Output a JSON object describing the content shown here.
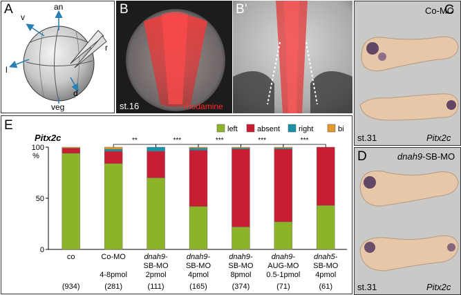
{
  "panel_a": {
    "label": "A",
    "axis_an": "an",
    "axis_v": "v",
    "axis_l": "l",
    "axis_r": "r",
    "axis_d": "d",
    "axis_veg": "veg"
  },
  "panel_b": {
    "label": "B",
    "stage": "st.16",
    "stain": "rhodamine"
  },
  "panel_bp": {
    "label": "B’"
  },
  "panel_c": {
    "label": "C",
    "condition": "Co-MO",
    "stage": "st.31",
    "gene": "Pitx2c"
  },
  "panel_d": {
    "label": "D",
    "condition_prefix": "dnah9",
    "condition_suffix": "-SB-MO",
    "stage": "st.31",
    "gene": "Pitx2c"
  },
  "panel_e": {
    "label": "E"
  },
  "colors": {
    "left": "#8db32a",
    "absent": "#c91d34",
    "right": "#1a93a6",
    "bi": "#e09a2c"
  },
  "chart_data": {
    "type": "bar",
    "stacked": true,
    "title": "Pitx2c",
    "ylabel": "%",
    "ylim": [
      0,
      100
    ],
    "yticks": [
      0,
      50,
      100
    ],
    "legend_position": "top-right",
    "legend": [
      "left",
      "absent",
      "right",
      "bi"
    ],
    "categories": [
      {
        "line1": "co",
        "line2": "",
        "line3": "",
        "n": "(934)"
      },
      {
        "line1": "Co-MO",
        "line2": "",
        "line3": "4-8pmol",
        "n": "(281)"
      },
      {
        "line1": "dnah9-",
        "line2": "SB-MO",
        "line3": "2pmol",
        "n": "(111)"
      },
      {
        "line1": "dnah9-",
        "line2": "SB-MO",
        "line3": "4pmol",
        "n": "(165)"
      },
      {
        "line1": "dnah9-",
        "line2": "SB-MO",
        "line3": "8pmol",
        "n": "(374)"
      },
      {
        "line1": "dnah9-",
        "line2": "AUG-MO",
        "line3": "0.5-1pmol",
        "n": "(71)"
      },
      {
        "line1": "dnah5-",
        "line2": "SB-MO",
        "line3": "4pmol",
        "n": "(61)"
      }
    ],
    "series": [
      {
        "name": "left",
        "values": [
          94,
          84,
          70,
          42,
          22,
          27,
          43
        ]
      },
      {
        "name": "absent",
        "values": [
          5,
          12,
          26,
          55,
          76,
          71,
          57
        ]
      },
      {
        "name": "right",
        "values": [
          0,
          2,
          4,
          2,
          1,
          1,
          0
        ]
      },
      {
        "name": "bi",
        "values": [
          1,
          2,
          0,
          1,
          1,
          1,
          0
        ]
      }
    ],
    "significance": [
      {
        "from": 1,
        "to": 2,
        "label": "**"
      },
      {
        "from": 2,
        "to": 3,
        "label": "***"
      },
      {
        "from": 3,
        "to": 4,
        "label": "***"
      },
      {
        "from": 4,
        "to": 5,
        "label": "***"
      },
      {
        "from": 5,
        "to": 6,
        "label": "***"
      }
    ]
  }
}
